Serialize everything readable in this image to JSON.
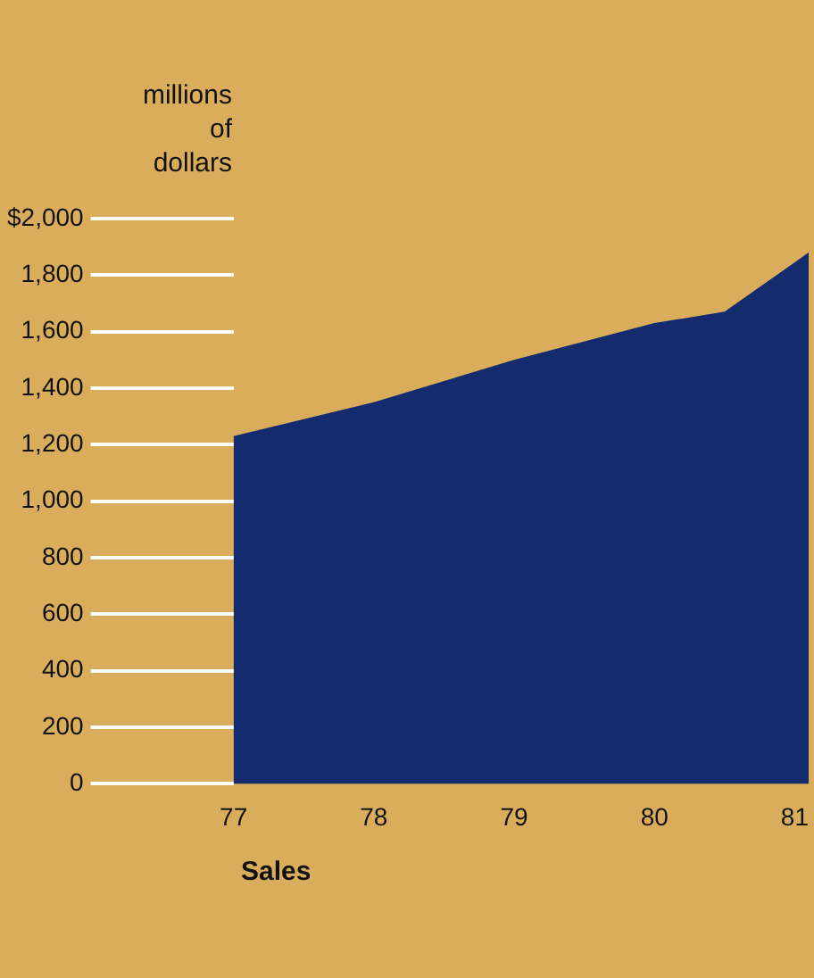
{
  "chart_data": {
    "type": "area",
    "xlabel": "Sales",
    "ylabel": "millions of dollars",
    "x": [
      77,
      78,
      79,
      80,
      80.5,
      81,
      81.1
    ],
    "series": [
      {
        "color": "#142c6e",
        "values": [
          1230,
          1350,
          1500,
          1630,
          1670,
          1845,
          1880
        ]
      }
    ],
    "xlim": [
      77,
      81.1
    ],
    "xticks": [
      77,
      78,
      79,
      80,
      81
    ],
    "ylim": [
      0,
      2000
    ],
    "yticks": [
      0,
      {
        "value": 200,
        "label": "200"
      },
      {
        "value": 400,
        "label": "400"
      },
      {
        "value": 600,
        "label": "600"
      },
      {
        "value": 800,
        "label": "800"
      },
      {
        "value": 1000,
        "label": "1,000"
      },
      {
        "value": 1200,
        "label": "1,200"
      },
      {
        "value": 1400,
        "label": "1,400"
      },
      {
        "value": 1600,
        "label": "1,600"
      },
      {
        "value": 1800,
        "label": "1,800"
      },
      {
        "value": 2000,
        "label": "$2,000"
      }
    ],
    "legend": false,
    "marker": "none"
  }
}
